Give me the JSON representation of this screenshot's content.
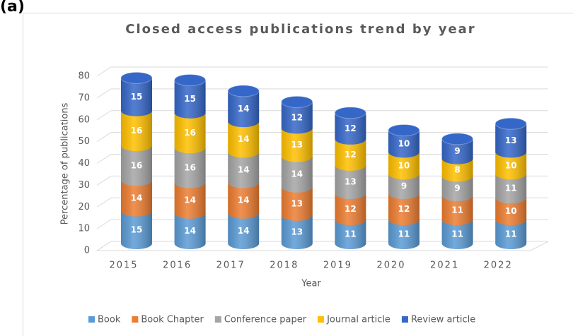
{
  "panel_label": "(a)",
  "chart_data": {
    "type": "stacked_cylinder",
    "title": "Closed access publications trend by year",
    "xlabel": "Year",
    "ylabel": "Percentage of publications",
    "categories": [
      "2015",
      "2016",
      "2017",
      "2018",
      "2019",
      "2020",
      "2021",
      "2022"
    ],
    "series": [
      {
        "name": "Book",
        "color": "#5b9bd5",
        "values": [
          15,
          14,
          14,
          13,
          11,
          11,
          11,
          11
        ]
      },
      {
        "name": "Book Chapter",
        "color": "#ed7d31",
        "values": [
          14,
          14,
          14,
          13,
          12,
          12,
          11,
          10
        ]
      },
      {
        "name": "Conference paper",
        "color": "#a5a5a5",
        "values": [
          16,
          16,
          14,
          14,
          13,
          9,
          9,
          11
        ]
      },
      {
        "name": "Journal article",
        "color": "#ffc000",
        "values": [
          16,
          16,
          14,
          13,
          12,
          10,
          8,
          10
        ]
      },
      {
        "name": "Review article",
        "color": "#3567c8",
        "values": [
          15,
          15,
          14,
          12,
          12,
          10,
          9,
          13
        ]
      }
    ],
    "ylim": [
      0,
      80
    ],
    "yticks": [
      0,
      10,
      20,
      30,
      40,
      50,
      60,
      70,
      80
    ],
    "grid": true,
    "legend": "bottom"
  }
}
